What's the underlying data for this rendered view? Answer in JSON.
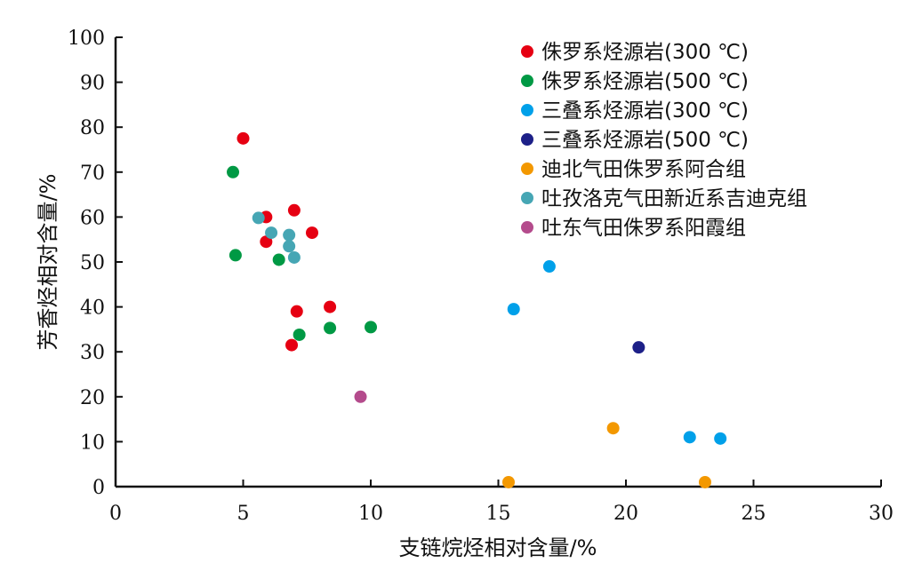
{
  "chart_data": {
    "type": "scatter",
    "xlabel": "支链烷烃相对含量/%",
    "ylabel": "芳香烃相对含量/%",
    "xlim": [
      0,
      30
    ],
    "ylim": [
      0,
      100
    ],
    "x_ticks": [
      0,
      5,
      10,
      15,
      20,
      25,
      30
    ],
    "y_ticks": [
      0,
      10,
      20,
      30,
      40,
      50,
      60,
      70,
      80,
      90,
      100
    ],
    "grid": false,
    "legend_position": "top-right",
    "series": [
      {
        "name": "侏罗系烃源岩(300 ℃)",
        "color": "#e60012",
        "points": [
          [
            5.0,
            77.5
          ],
          [
            7.0,
            61.5
          ],
          [
            5.9,
            60.0
          ],
          [
            7.7,
            56.5
          ],
          [
            5.9,
            54.5
          ],
          [
            8.4,
            40.0
          ],
          [
            7.1,
            39.0
          ],
          [
            6.9,
            31.5
          ]
        ]
      },
      {
        "name": "侏罗系烃源岩(500 ℃)",
        "color": "#009944",
        "points": [
          [
            4.6,
            70.0
          ],
          [
            4.7,
            51.5
          ],
          [
            6.4,
            50.5
          ],
          [
            10.0,
            35.5
          ],
          [
            8.4,
            35.3
          ],
          [
            7.2,
            33.8
          ]
        ]
      },
      {
        "name": "三叠系烃源岩(300 ℃)",
        "color": "#00a0e9",
        "points": [
          [
            17.0,
            49.0
          ],
          [
            15.6,
            39.5
          ],
          [
            22.5,
            11.0
          ],
          [
            23.7,
            10.7
          ]
        ]
      },
      {
        "name": "三叠系烃源岩(500 ℃)",
        "color": "#1d2088",
        "points": [
          [
            20.5,
            31.0
          ]
        ]
      },
      {
        "name": "迪北气田侏罗系阿合组",
        "color": "#f39800",
        "points": [
          [
            19.5,
            13.0
          ],
          [
            15.4,
            1.0
          ],
          [
            23.1,
            1.0
          ]
        ]
      },
      {
        "name": "吐孜洛克气田新近系吉迪克组",
        "color": "#46a6b4",
        "points": [
          [
            5.6,
            59.8
          ],
          [
            6.1,
            56.5
          ],
          [
            6.8,
            56.0
          ],
          [
            6.8,
            53.5
          ],
          [
            7.0,
            51.0
          ]
        ]
      },
      {
        "name": "吐东气田侏罗系阳霞组",
        "color": "#b44b8c",
        "points": [
          [
            9.6,
            20.0
          ]
        ]
      }
    ]
  }
}
